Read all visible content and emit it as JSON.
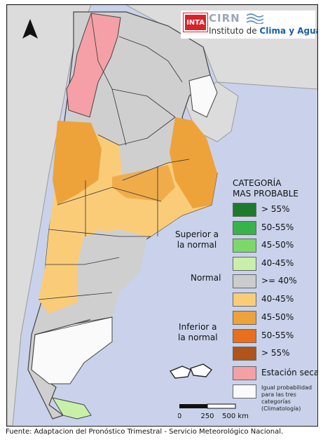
{
  "header": {
    "logo_inta": "INTA",
    "logo_cirn": "CIRN",
    "institute_prefix": "Instituto de ",
    "institute_name": "Clima y Agua"
  },
  "legend": {
    "title_line1": "CATEGORÍA",
    "title_line2": "MAS PROBABLE",
    "group_superior": [
      "Superior a",
      "la normal"
    ],
    "group_normal": "Normal",
    "group_inferior": [
      "Inferior a",
      "la normal"
    ],
    "items": [
      {
        "label": "> 55%",
        "color": "#1f7a2e"
      },
      {
        "label": "50-55%",
        "color": "#36b34a"
      },
      {
        "label": "45-50%",
        "color": "#7dd86a"
      },
      {
        "label": "40-45%",
        "color": "#c8f0a8"
      },
      {
        "label": ">= 40%",
        "color": "#cccccc"
      },
      {
        "label": "40-45%",
        "color": "#fbcc78"
      },
      {
        "label": "45-50%",
        "color": "#eea23a"
      },
      {
        "label": "50-55%",
        "color": "#e8701c"
      },
      {
        "label": "> 55%",
        "color": "#b0541a"
      },
      {
        "label": "Estación seca",
        "color": "#f4a0a6"
      },
      {
        "label": "",
        "color": "#fafafa"
      }
    ],
    "note_lines": [
      "Igual probabilidad",
      "para las tres",
      "categorías",
      "(Climatología)"
    ]
  },
  "scale_bar": {
    "labels": [
      "0",
      "250",
      "500 km"
    ]
  },
  "source": "Fuente: Adaptacion del Pronóstico Trimestral - Servicio Meteorológico Nacional."
}
